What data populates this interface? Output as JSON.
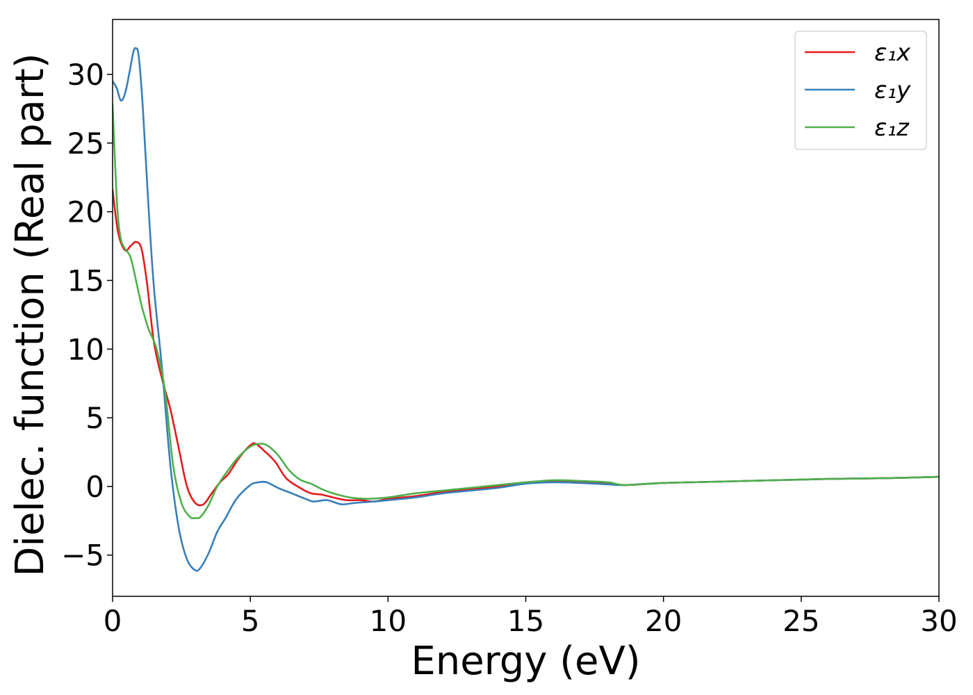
{
  "chart_data": {
    "type": "line",
    "title": "",
    "xlabel": "Energy (eV)",
    "ylabel": "Dielec. function (Real part)",
    "xlim": [
      0,
      30
    ],
    "ylim": [
      -8,
      34
    ],
    "xticks": [
      0,
      5,
      10,
      15,
      20,
      25,
      30
    ],
    "yticks": [
      -5,
      0,
      5,
      10,
      15,
      20,
      25,
      30
    ],
    "xtick_labels": [
      "0",
      "5",
      "10",
      "15",
      "20",
      "25",
      "30"
    ],
    "ytick_labels": [
      "−5",
      "0",
      "5",
      "10",
      "15",
      "20",
      "25",
      "30"
    ],
    "grid": false,
    "legend": {
      "position": "top-right"
    },
    "series": [
      {
        "name": "ε₁x",
        "color": "#e41a1c",
        "x": [
          0,
          0.2,
          0.45,
          0.65,
          0.85,
          1.05,
          1.25,
          1.5,
          1.8,
          2.1,
          2.4,
          2.7,
          3.0,
          3.3,
          3.6,
          3.9,
          4.2,
          4.6,
          5.0,
          5.2,
          5.5,
          5.9,
          6.3,
          6.8,
          7.2,
          7.6,
          8.0,
          8.5,
          9.0,
          9.5,
          10,
          11,
          12,
          13,
          14,
          15,
          16,
          17,
          18,
          18.6,
          20,
          22,
          24,
          26,
          28,
          30
        ],
        "y": [
          21.6,
          18.5,
          17.2,
          17.5,
          17.8,
          17.3,
          14.8,
          10.5,
          7.8,
          5.6,
          2.8,
          0.0,
          -1.2,
          -1.3,
          -0.5,
          0.3,
          0.9,
          2.1,
          3.0,
          3.1,
          2.6,
          1.8,
          0.6,
          -0.1,
          -0.5,
          -0.6,
          -0.8,
          -1.0,
          -1.0,
          -1.1,
          -0.9,
          -0.7,
          -0.4,
          -0.2,
          0.0,
          0.3,
          0.4,
          0.3,
          0.2,
          0.1,
          0.25,
          0.35,
          0.45,
          0.55,
          0.6,
          0.7
        ]
      },
      {
        "name": "ε₁y",
        "color": "#377eb8",
        "x": [
          0,
          0.15,
          0.3,
          0.45,
          0.6,
          0.75,
          0.85,
          0.95,
          1.1,
          1.3,
          1.5,
          1.8,
          2.1,
          2.4,
          2.7,
          3.0,
          3.2,
          3.5,
          3.8,
          4.1,
          4.5,
          5.0,
          5.3,
          5.6,
          6.0,
          6.5,
          7.0,
          7.3,
          7.8,
          8.3,
          8.8,
          9.5,
          10,
          11,
          12,
          13,
          14,
          15,
          16,
          17,
          18,
          18.6,
          20,
          22,
          24,
          26,
          28,
          30
        ],
        "y": [
          29.5,
          29.0,
          28.1,
          28.6,
          30.0,
          31.6,
          31.9,
          31.3,
          27.5,
          20.5,
          14.5,
          8.5,
          1.5,
          -3.0,
          -5.3,
          -6.1,
          -5.9,
          -4.8,
          -3.3,
          -2.3,
          -0.9,
          0.1,
          0.3,
          0.3,
          -0.1,
          -0.5,
          -0.9,
          -1.1,
          -1.0,
          -1.3,
          -1.2,
          -1.1,
          -1.0,
          -0.8,
          -0.5,
          -0.3,
          -0.1,
          0.2,
          0.3,
          0.25,
          0.15,
          0.1,
          0.25,
          0.35,
          0.45,
          0.55,
          0.6,
          0.7
        ]
      },
      {
        "name": "ε₁z",
        "color": "#4daf4a",
        "x": [
          0,
          0.08,
          0.18,
          0.3,
          0.45,
          0.65,
          0.85,
          1.05,
          1.3,
          1.6,
          1.9,
          2.2,
          2.5,
          2.8,
          3.0,
          3.2,
          3.5,
          3.8,
          4.2,
          4.6,
          5.0,
          5.3,
          5.6,
          6.0,
          6.4,
          6.8,
          7.2,
          7.6,
          8.0,
          8.6,
          9.2,
          10,
          11,
          12,
          13,
          14,
          15,
          16,
          17,
          18,
          18.6,
          20,
          22,
          24,
          26,
          28,
          30
        ],
        "y": [
          27.8,
          24.0,
          20.0,
          18.0,
          17.3,
          16.7,
          15.0,
          13.2,
          11.5,
          10.0,
          7.0,
          1.5,
          -1.2,
          -2.2,
          -2.3,
          -2.2,
          -1.3,
          0.0,
          1.2,
          2.2,
          2.9,
          3.1,
          3.0,
          2.3,
          1.2,
          0.5,
          0.2,
          -0.2,
          -0.5,
          -0.8,
          -0.9,
          -0.8,
          -0.5,
          -0.3,
          -0.1,
          0.1,
          0.3,
          0.45,
          0.4,
          0.3,
          0.1,
          0.25,
          0.35,
          0.45,
          0.55,
          0.6,
          0.7
        ]
      }
    ]
  }
}
